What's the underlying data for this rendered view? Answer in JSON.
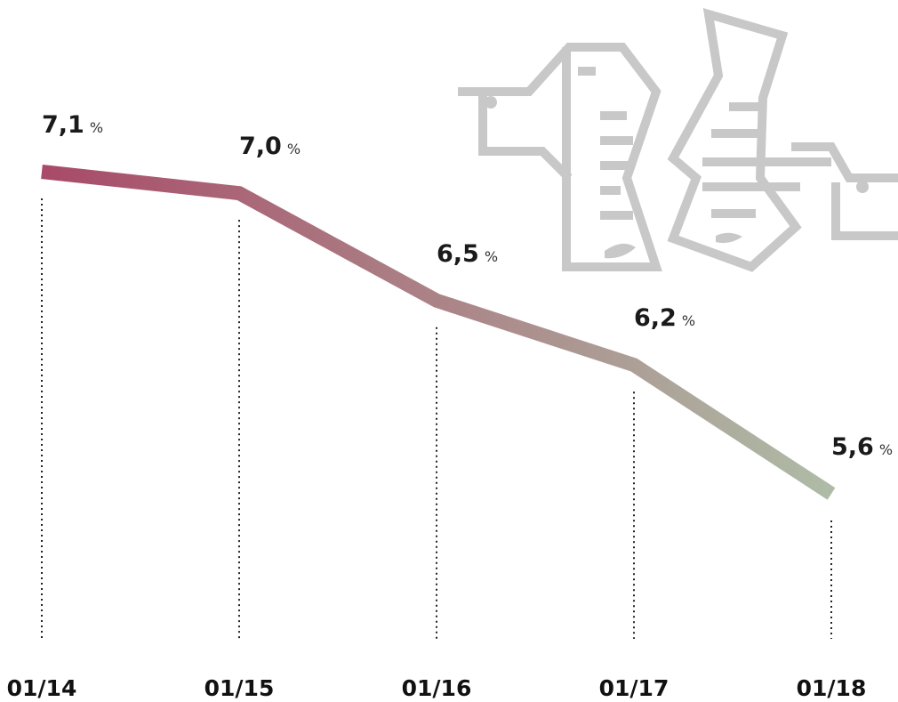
{
  "chart_data": {
    "type": "line",
    "categories": [
      "01/14",
      "01/15",
      "01/16",
      "01/17",
      "01/18"
    ],
    "values": [
      7.1,
      7.0,
      6.5,
      6.2,
      5.6
    ],
    "value_labels": [
      "7,1",
      "7,0",
      "6,5",
      "6,2",
      "5,6"
    ],
    "unit_label": "%",
    "color_start": "#a84a68",
    "color_end": "#aebca6"
  }
}
